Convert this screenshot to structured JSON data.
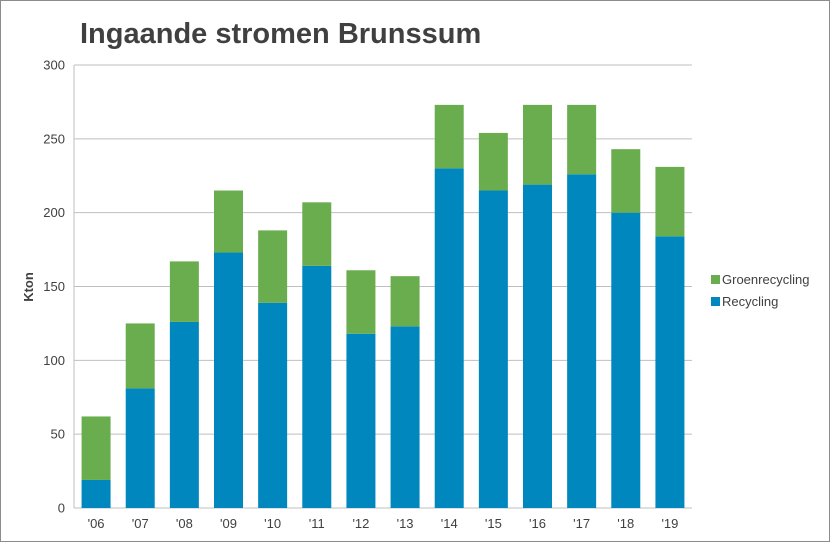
{
  "chart_data": {
    "type": "bar",
    "stacked": true,
    "title": "Ingaande stromen Brunssum",
    "xlabel": "",
    "ylabel": "Kton",
    "ylim": [
      0,
      300
    ],
    "yticks": [
      0,
      50,
      100,
      150,
      200,
      250,
      300
    ],
    "grid": true,
    "legend_position": "right",
    "categories": [
      "'06",
      "'07",
      "'08",
      "'09",
      "'10",
      "'11",
      "'12",
      "'13",
      "'14",
      "'15",
      "'16",
      "'17",
      "'18",
      "'19"
    ],
    "series": [
      {
        "name": "Recycling",
        "color": "#0088be",
        "values": [
          19,
          81,
          126,
          173,
          139,
          164,
          118,
          123,
          230,
          215,
          219,
          226,
          200,
          184
        ]
      },
      {
        "name": "Groenrecycling",
        "color": "#6aad4f",
        "values": [
          43,
          44,
          41,
          42,
          49,
          43,
          43,
          34,
          43,
          39,
          54,
          47,
          43,
          47
        ]
      }
    ],
    "legend_order": [
      "Groenrecycling",
      "Recycling"
    ]
  }
}
